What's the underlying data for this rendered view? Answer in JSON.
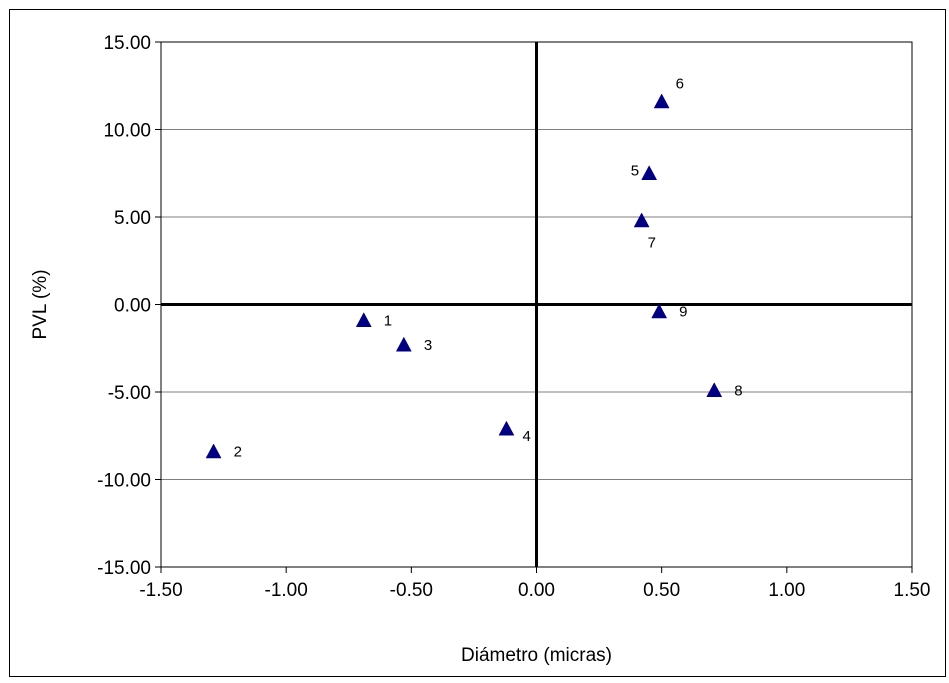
{
  "chart_data": {
    "type": "scatter",
    "title": "",
    "xlabel": "Diámetro (micras)",
    "ylabel": "PVL (%)",
    "xlim": [
      -1.5,
      1.5
    ],
    "ylim": [
      -15,
      15
    ],
    "x_ticks": [
      -1.5,
      -1.0,
      -0.5,
      0.0,
      0.5,
      1.0,
      1.5
    ],
    "y_ticks": [
      -15,
      -10,
      -5,
      0,
      5,
      10,
      15
    ],
    "x_tick_labels": [
      "-1.50",
      "-1.00",
      "-0.50",
      "0.00",
      "0.50",
      "1.00",
      "1.50"
    ],
    "y_tick_labels": [
      "-15.00",
      "-10.00",
      "-5.00",
      "0.00",
      "5.00",
      "10.00",
      "15.00"
    ],
    "grid": "horizontal",
    "marker": "triangle",
    "marker_color": "#000080",
    "points": [
      {
        "label": "1",
        "x": -0.69,
        "y": -0.9,
        "label_side": "right"
      },
      {
        "label": "2",
        "x": -1.29,
        "y": -8.4,
        "label_side": "right"
      },
      {
        "label": "3",
        "x": -0.53,
        "y": -2.3,
        "label_side": "right"
      },
      {
        "label": "4",
        "x": -0.12,
        "y": -7.1,
        "label_side": "right-below"
      },
      {
        "label": "5",
        "x": 0.45,
        "y": 7.5,
        "label_side": "left"
      },
      {
        "label": "6",
        "x": 0.5,
        "y": 11.6,
        "label_side": "above-right"
      },
      {
        "label": "7",
        "x": 0.42,
        "y": 4.8,
        "label_side": "below"
      },
      {
        "label": "8",
        "x": 0.71,
        "y": -4.9,
        "label_side": "right"
      },
      {
        "label": "9",
        "x": 0.49,
        "y": -0.4,
        "label_side": "right"
      }
    ]
  }
}
